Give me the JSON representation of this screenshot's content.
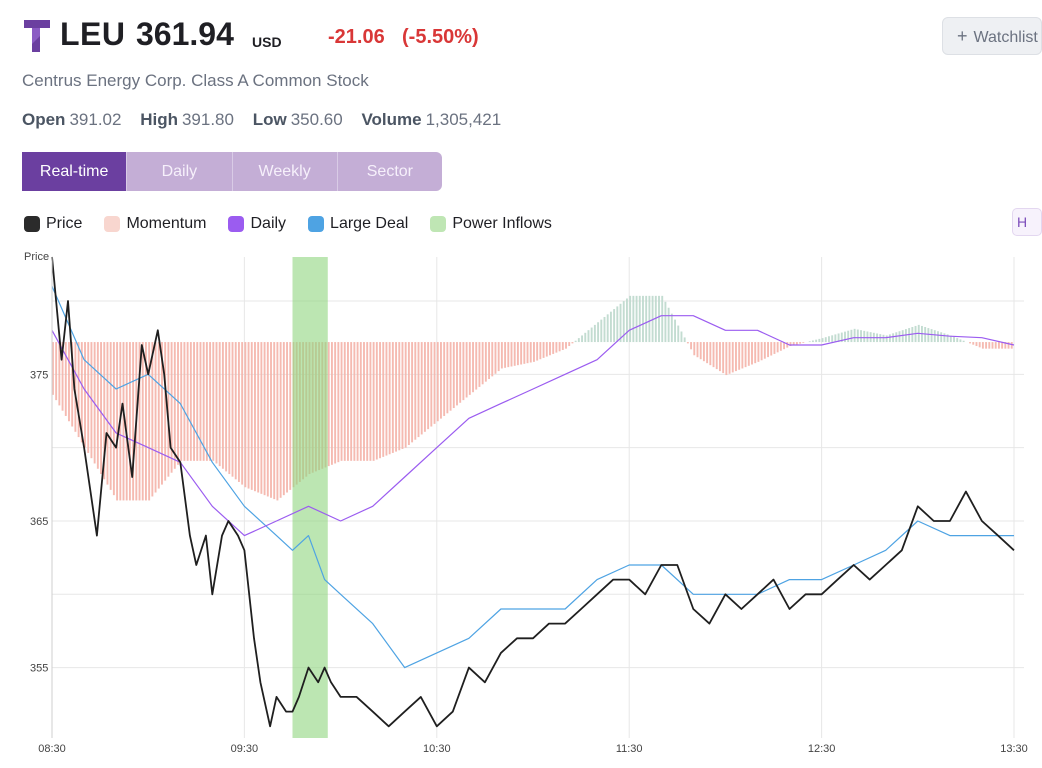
{
  "header": {
    "symbol": "LEU",
    "price": "361.94",
    "currency": "USD",
    "change": "-21.06",
    "change_pct": "(-5.50%)",
    "company": "Centrus Energy Corp. Class A Common Stock",
    "watchlist_label": "Watchlist",
    "logo_icon": "t-logo-icon",
    "logo_color": "#6b3fa0"
  },
  "stats": {
    "open_label": "Open",
    "open_value": "391.02",
    "high_label": "High",
    "high_value": "391.80",
    "low_label": "Low",
    "low_value": "350.60",
    "volume_label": "Volume",
    "volume_value": "1,305,421"
  },
  "tabs": [
    {
      "label": "Real-time",
      "active": true
    },
    {
      "label": "Daily",
      "active": false
    },
    {
      "label": "Weekly",
      "active": false
    },
    {
      "label": "Sector",
      "active": false
    }
  ],
  "legend": [
    {
      "label": "Price",
      "color": "#2b2b2b"
    },
    {
      "label": "Momentum",
      "color": "#f8d6cf"
    },
    {
      "label": "Daily",
      "color": "#9b5cf0"
    },
    {
      "label": "Large Deal",
      "color": "#4ea3e3"
    },
    {
      "label": "Power Inflows",
      "color": "#bfe6b4"
    }
  ],
  "legend_end_label": "H",
  "chart_data": {
    "type": "line",
    "title": "",
    "ylabel": "Price",
    "xlabel": "",
    "ylim": [
      350.2,
      383
    ],
    "xlim": [
      "08:30",
      "13:30"
    ],
    "x_ticks": [
      "08:30",
      "09:30",
      "10:30",
      "11:30",
      "12:30",
      "13:30"
    ],
    "y_ticks": [
      355,
      365,
      375
    ],
    "grid": true,
    "colors": {
      "price": "#1f1f1f",
      "daily": "#9b5cf0",
      "large_deal": "#4ea3e3",
      "momentum_neg": "#f4b3a9",
      "momentum_pos": "#bcd8cc",
      "power_inflows": "#8fd67e"
    },
    "power_inflows": {
      "start": "09:45",
      "end": "09:56"
    },
    "momentum_baseline": 377.2,
    "series": [
      {
        "name": "Price",
        "x": [
          "08:30",
          "08:33",
          "08:35",
          "08:37",
          "08:40",
          "08:42",
          "08:44",
          "08:47",
          "08:50",
          "08:52",
          "08:55",
          "08:58",
          "09:00",
          "09:03",
          "09:05",
          "09:07",
          "09:10",
          "09:13",
          "09:15",
          "09:18",
          "09:20",
          "09:23",
          "09:25",
          "09:28",
          "09:30",
          "09:33",
          "09:35",
          "09:38",
          "09:40",
          "09:43",
          "09:45",
          "09:47",
          "09:50",
          "09:53",
          "09:55",
          "09:57",
          "10:00",
          "10:05",
          "10:10",
          "10:15",
          "10:20",
          "10:25",
          "10:30",
          "10:35",
          "10:40",
          "10:45",
          "10:50",
          "10:55",
          "11:00",
          "11:05",
          "11:10",
          "11:15",
          "11:20",
          "11:25",
          "11:30",
          "11:35",
          "11:40",
          "11:45",
          "11:50",
          "11:55",
          "12:00",
          "12:05",
          "12:10",
          "12:15",
          "12:20",
          "12:25",
          "12:30",
          "12:35",
          "12:40",
          "12:45",
          "12:50",
          "12:55",
          "13:00",
          "13:05",
          "13:10",
          "13:15",
          "13:20",
          "13:25",
          "13:30"
        ],
        "values": [
          383,
          376,
          380,
          374,
          370,
          367,
          364,
          371,
          370,
          373,
          368,
          377,
          375,
          378,
          375,
          370,
          369,
          364,
          362,
          364,
          360,
          364,
          365,
          364,
          363,
          357,
          354,
          351,
          353,
          352,
          352,
          353,
          355,
          354,
          355,
          354,
          353,
          353,
          352,
          351,
          352,
          353,
          351,
          352,
          355,
          354,
          356,
          357,
          357,
          358,
          358,
          359,
          360,
          361,
          361,
          360,
          362,
          362,
          359,
          358,
          360,
          359,
          360,
          361,
          359,
          360,
          360,
          361,
          362,
          361,
          362,
          363,
          366,
          365,
          365,
          367,
          365,
          364,
          363
        ]
      },
      {
        "name": "Daily",
        "x": [
          "08:30",
          "08:40",
          "08:50",
          "09:00",
          "09:10",
          "09:20",
          "09:30",
          "09:40",
          "09:50",
          "10:00",
          "10:10",
          "10:20",
          "10:30",
          "10:40",
          "10:50",
          "11:00",
          "11:10",
          "11:20",
          "11:30",
          "11:40",
          "11:50",
          "12:00",
          "12:10",
          "12:20",
          "12:30",
          "12:40",
          "12:50",
          "13:00",
          "13:10",
          "13:20",
          "13:30"
        ],
        "values": [
          378,
          374,
          371,
          370,
          369,
          366,
          364,
          365,
          366,
          365,
          366,
          368,
          370,
          372,
          373,
          374,
          375,
          376,
          378,
          379,
          379,
          378,
          378,
          377,
          377,
          377.5,
          377.5,
          377.8,
          377.6,
          377.5,
          377
        ]
      },
      {
        "name": "Large Deal",
        "x": [
          "08:30",
          "08:40",
          "08:50",
          "09:00",
          "09:10",
          "09:20",
          "09:30",
          "09:40",
          "09:45",
          "09:50",
          "09:55",
          "10:00",
          "10:10",
          "10:20",
          "10:30",
          "10:40",
          "10:50",
          "11:00",
          "11:10",
          "11:20",
          "11:30",
          "11:40",
          "11:50",
          "12:00",
          "12:10",
          "12:20",
          "12:30",
          "12:40",
          "12:50",
          "13:00",
          "13:10",
          "13:20",
          "13:30"
        ],
        "values": [
          381,
          376,
          374,
          375,
          373,
          369,
          366,
          364,
          363,
          364,
          361,
          360,
          358,
          355,
          356,
          357,
          359,
          359,
          359,
          361,
          362,
          362,
          360,
          360,
          360,
          361,
          361,
          362,
          363,
          365,
          364,
          364,
          364
        ]
      },
      {
        "name": "Momentum",
        "x": [
          "08:30",
          "08:40",
          "08:50",
          "09:00",
          "09:10",
          "09:20",
          "09:30",
          "09:40",
          "09:50",
          "10:00",
          "10:10",
          "10:20",
          "10:30",
          "10:40",
          "10:50",
          "11:00",
          "11:10",
          "11:20",
          "11:30",
          "11:40",
          "11:50",
          "12:00",
          "12:10",
          "12:20",
          "12:30",
          "12:40",
          "12:50",
          "13:00",
          "13:10",
          "13:20",
          "13:30"
        ],
        "values": [
          -4,
          -8,
          -12,
          -12,
          -9,
          -9,
          -11,
          -12,
          -10,
          -9,
          -9,
          -8,
          -6,
          -4,
          -2,
          -1.5,
          -0.5,
          1.5,
          3.5,
          3.5,
          -1,
          -2.5,
          -1.5,
          -0.3,
          0.3,
          1,
          0.5,
          1.3,
          0.5,
          -0.5,
          -0.5
        ]
      }
    ]
  }
}
